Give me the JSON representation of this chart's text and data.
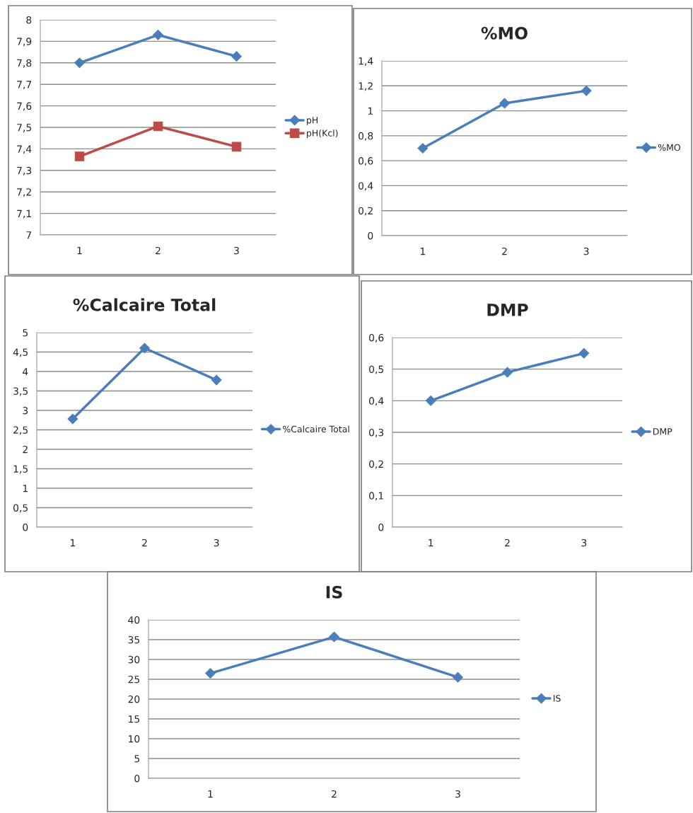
{
  "chart_data": [
    {
      "type": "line",
      "categories": [
        "1",
        "2",
        "3"
      ],
      "series": [
        {
          "name": "pH",
          "color": "#4a7ebb",
          "values": [
            7.8,
            7.93,
            7.83
          ]
        },
        {
          "name": "pH(Kcl)",
          "color": "#be4b48",
          "marker": "square",
          "values": [
            7.365,
            7.505,
            7.41
          ]
        }
      ],
      "ylim": [
        7,
        8
      ],
      "yticks": [
        7,
        {
          "value": 7.1,
          "label": "7,1"
        },
        {
          "value": 7.2,
          "label": "7,2"
        },
        {
          "value": 7.3,
          "label": "7,3"
        },
        {
          "value": 7.4,
          "label": "7,4"
        },
        {
          "value": 7.5,
          "label": "7,5"
        },
        {
          "value": 7.6,
          "label": "7,6"
        },
        {
          "value": 7.7,
          "label": "7,7"
        },
        {
          "value": 7.8,
          "label": "7,8"
        },
        {
          "value": 7.9,
          "label": "7,9"
        },
        8
      ],
      "grid": "y",
      "legend": "right",
      "marker": "diamond"
    },
    {
      "type": "line",
      "title": "%MO",
      "categories": [
        "1",
        "2",
        "3"
      ],
      "series": [
        {
          "name": "%MO",
          "color": "#4a7ebb",
          "values": [
            0.7,
            1.06,
            1.16
          ]
        }
      ],
      "ylim": [
        0,
        1.4
      ],
      "yticks": [
        0,
        {
          "value": 0.2,
          "label": "0,2"
        },
        {
          "value": 0.4,
          "label": "0,4"
        },
        {
          "value": 0.6,
          "label": "0,6"
        },
        {
          "value": 0.8,
          "label": "0,8"
        },
        1,
        {
          "value": 1.2,
          "label": "1,2"
        },
        {
          "value": 1.4,
          "label": "1,4"
        }
      ],
      "grid": "y",
      "legend": "right",
      "marker": "diamond"
    },
    {
      "type": "line",
      "title": "%Calcaire Total",
      "categories": [
        "1",
        "2",
        "3"
      ],
      "series": [
        {
          "name": "%Calcaire Total",
          "color": "#4a7ebb",
          "values": [
            2.78,
            4.6,
            3.78
          ]
        }
      ],
      "ylim": [
        0,
        5
      ],
      "yticks": [
        0,
        {
          "value": 0.5,
          "label": "0,5"
        },
        1,
        {
          "value": 1.5,
          "label": "1,5"
        },
        2,
        {
          "value": 2.5,
          "label": "2,5"
        },
        3,
        {
          "value": 3.5,
          "label": "3,5"
        },
        4,
        {
          "value": 4.5,
          "label": "4,5"
        },
        5
      ],
      "grid": "y",
      "legend": "right",
      "marker": "diamond"
    },
    {
      "type": "line",
      "title": "DMP",
      "categories": [
        "1",
        "2",
        "3"
      ],
      "series": [
        {
          "name": "DMP",
          "color": "#4a7ebb",
          "values": [
            0.4,
            0.49,
            0.55
          ]
        }
      ],
      "ylim": [
        0,
        0.6
      ],
      "yticks": [
        0,
        {
          "value": 0.1,
          "label": "0,1"
        },
        {
          "value": 0.2,
          "label": "0,2"
        },
        {
          "value": 0.3,
          "label": "0,3"
        },
        {
          "value": 0.4,
          "label": "0,4"
        },
        {
          "value": 0.5,
          "label": "0,5"
        },
        {
          "value": 0.6,
          "label": "0,6"
        }
      ],
      "grid": "y",
      "legend": "right",
      "marker": "diamond"
    },
    {
      "type": "line",
      "title": "IS",
      "categories": [
        "1",
        "2",
        "3"
      ],
      "series": [
        {
          "name": "IS",
          "color": "#4a7ebb",
          "values": [
            26.5,
            35.7,
            25.5
          ]
        }
      ],
      "ylim": [
        0,
        40
      ],
      "yticks": [
        0,
        5,
        10,
        15,
        20,
        25,
        30,
        35,
        40
      ],
      "grid": "y",
      "legend": "right",
      "marker": "diamond"
    }
  ]
}
